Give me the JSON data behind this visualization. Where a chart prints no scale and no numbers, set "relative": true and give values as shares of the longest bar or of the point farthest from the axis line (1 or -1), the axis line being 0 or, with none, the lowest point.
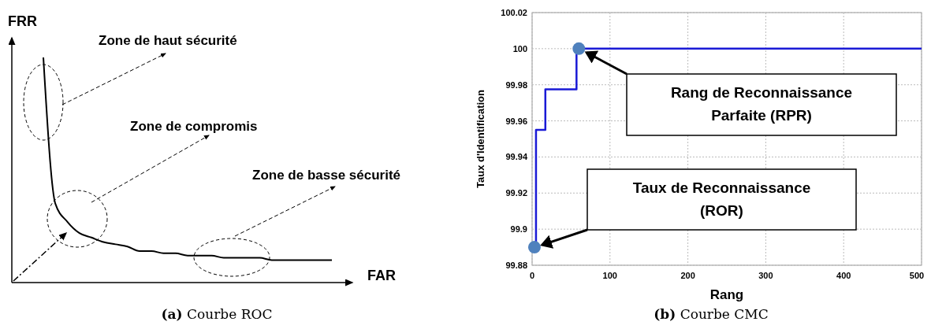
{
  "chart_data": [
    {
      "type": "line",
      "relative": true,
      "xlabel": "FAR",
      "ylabel": "FRR",
      "tick_labels": false,
      "categories": [
        null,
        null,
        null,
        null,
        null,
        null,
        null,
        null,
        null,
        null,
        null,
        null,
        null,
        null,
        null,
        null,
        null,
        null,
        null,
        null,
        null,
        null,
        null,
        null,
        null
      ],
      "series": [
        {
          "color": "#000000",
          "values": [
            1,
            0.35,
            0.27,
            0.22,
            0.2,
            0.18,
            0.17,
            0.16,
            0.14,
            0.14,
            0.13,
            0.13,
            0.12,
            0.12,
            0.12,
            0.11,
            0.11,
            0.11,
            0.11,
            0.1,
            0.1,
            0.1,
            0.1,
            0.1,
            0.1
          ]
        }
      ],
      "annotations": [
        "Zone de haut sécurité",
        "Zone de compromis",
        "Zone de basse sécurité",
        "(a) Courbe ROC"
      ]
    },
    {
      "type": "step",
      "xlabel": "Rang",
      "ylabel": "Taux d'Identification",
      "grid": true,
      "xlim": [
        0,
        500
      ],
      "xticks": [
        0,
        100,
        200,
        300,
        400,
        500
      ],
      "ylim": [
        99.88,
        100.02
      ],
      "yticks": [
        99.88,
        {
          "value": 99.9,
          "label": "99.9"
        },
        99.92,
        99.94,
        99.96,
        99.98,
        {
          "value": 100,
          "label": "100"
        },
        100.02
      ],
      "series": [
        {
          "type": "step",
          "color": "#1a1ad6",
          "x": [
            2,
            5,
            17,
            57,
            500
          ],
          "values": [
            99.89,
            99.955,
            99.9775,
            100,
            100
          ]
        },
        {
          "type": "scatter",
          "marker": "circle",
          "color": "#4f81bd",
          "x": [
            3,
            60
          ],
          "values": [
            99.89,
            100
          ]
        }
      ],
      "annotations": [
        "Rang de Reconnaissance Parfaite (RPR)",
        "Taux de Reconnaissance (ROR)",
        "(b) Courbe CMC"
      ]
    }
  ]
}
